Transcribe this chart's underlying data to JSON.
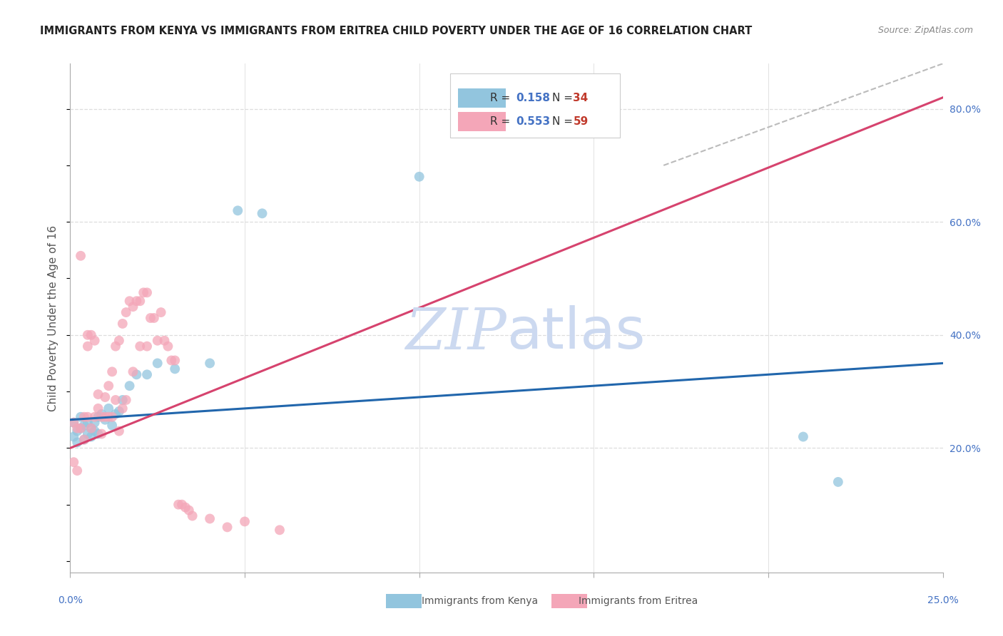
{
  "title": "IMMIGRANTS FROM KENYA VS IMMIGRANTS FROM ERITREA CHILD POVERTY UNDER THE AGE OF 16 CORRELATION CHART",
  "source": "Source: ZipAtlas.com",
  "ylabel": "Child Poverty Under the Age of 16",
  "ylabel_right_ticks": [
    "80.0%",
    "60.0%",
    "40.0%",
    "20.0%"
  ],
  "ylabel_right_vals": [
    0.8,
    0.6,
    0.4,
    0.2
  ],
  "x_min": 0.0,
  "x_max": 0.25,
  "y_min": -0.02,
  "y_max": 0.88,
  "kenya_R": 0.158,
  "kenya_N": 34,
  "eritrea_R": 0.553,
  "eritrea_N": 59,
  "kenya_color": "#92c5de",
  "eritrea_color": "#f4a6b8",
  "kenya_line_color": "#2166ac",
  "eritrea_line_color": "#d6436e",
  "background_color": "#ffffff",
  "grid_color": "#dddddd",
  "title_color": "#222222",
  "axis_label_color": "#4472c4",
  "watermark_color": "#ccd9f0",
  "kenya_scatter_x": [
    0.001,
    0.001,
    0.002,
    0.002,
    0.003,
    0.003,
    0.004,
    0.004,
    0.005,
    0.005,
    0.006,
    0.006,
    0.007,
    0.007,
    0.008,
    0.008,
    0.009,
    0.01,
    0.011,
    0.012,
    0.013,
    0.014,
    0.015,
    0.017,
    0.019,
    0.022,
    0.025,
    0.03,
    0.04,
    0.048,
    0.055,
    0.1,
    0.21,
    0.22
  ],
  "kenya_scatter_y": [
    0.245,
    0.22,
    0.23,
    0.21,
    0.255,
    0.235,
    0.24,
    0.215,
    0.245,
    0.225,
    0.235,
    0.22,
    0.245,
    0.23,
    0.255,
    0.225,
    0.26,
    0.25,
    0.27,
    0.24,
    0.26,
    0.265,
    0.285,
    0.31,
    0.33,
    0.33,
    0.35,
    0.34,
    0.35,
    0.62,
    0.615,
    0.68,
    0.22,
    0.14
  ],
  "eritrea_scatter_x": [
    0.001,
    0.001,
    0.002,
    0.002,
    0.003,
    0.003,
    0.004,
    0.004,
    0.005,
    0.005,
    0.005,
    0.006,
    0.006,
    0.007,
    0.007,
    0.008,
    0.008,
    0.009,
    0.009,
    0.01,
    0.01,
    0.011,
    0.011,
    0.012,
    0.012,
    0.013,
    0.013,
    0.014,
    0.014,
    0.015,
    0.015,
    0.016,
    0.016,
    0.017,
    0.018,
    0.018,
    0.019,
    0.02,
    0.02,
    0.021,
    0.022,
    0.022,
    0.023,
    0.024,
    0.025,
    0.026,
    0.027,
    0.028,
    0.029,
    0.03,
    0.031,
    0.032,
    0.033,
    0.034,
    0.035,
    0.04,
    0.045,
    0.05,
    0.06
  ],
  "eritrea_scatter_y": [
    0.245,
    0.175,
    0.235,
    0.16,
    0.54,
    0.235,
    0.255,
    0.215,
    0.4,
    0.38,
    0.255,
    0.4,
    0.235,
    0.39,
    0.255,
    0.27,
    0.295,
    0.255,
    0.225,
    0.29,
    0.255,
    0.31,
    0.255,
    0.335,
    0.255,
    0.38,
    0.285,
    0.39,
    0.23,
    0.42,
    0.27,
    0.44,
    0.285,
    0.46,
    0.45,
    0.335,
    0.46,
    0.46,
    0.38,
    0.475,
    0.475,
    0.38,
    0.43,
    0.43,
    0.39,
    0.44,
    0.39,
    0.38,
    0.355,
    0.355,
    0.1,
    0.1,
    0.095,
    0.09,
    0.08,
    0.075,
    0.06,
    0.07,
    0.055
  ],
  "legend_R_color": "#4472c4",
  "legend_N_color": "#c0392b"
}
